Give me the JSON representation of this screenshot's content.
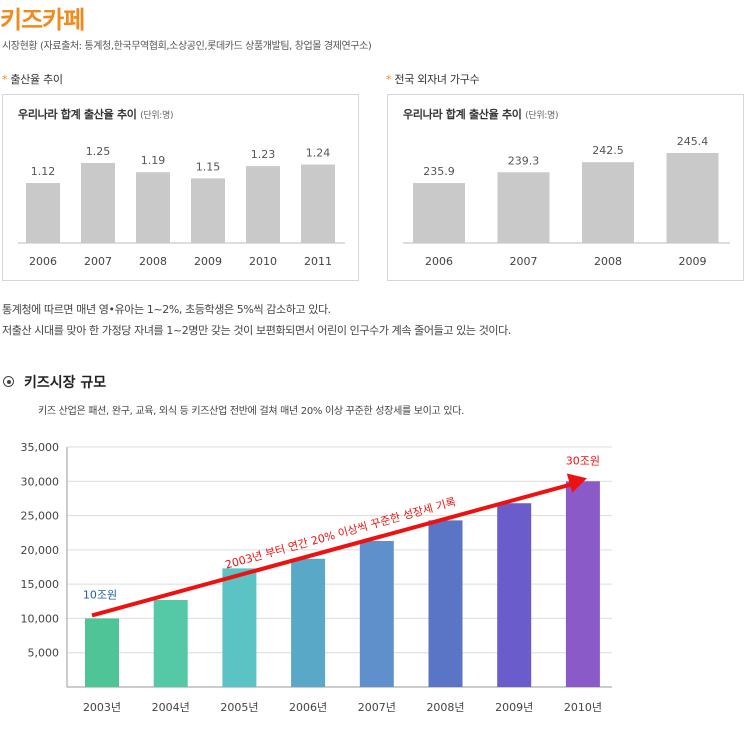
{
  "header": {
    "title": "키즈카페",
    "subtitle": "시장현황 (자료출처: 통계청,한국무역협회,소상공인,롯데카드 상품개발팀, 창업몰 경제연구소)"
  },
  "section_left": {
    "star": "*",
    "label": "출산율 추이"
  },
  "section_right": {
    "star": "*",
    "label": "전국 외자녀 가구수"
  },
  "description": {
    "line1": "통계청에 따르면 매년 영•유아는 1~2%, 초등학생은 5%씩 감소하고 있다.",
    "line2": "저출산 시대를 맞아 한 가정당 자녀를 1~2명만 갖는 것이 보편화되면서 어린이 인구수가 계속 줄어들고 있는 것이다."
  },
  "market": {
    "title": "키즈시장 규모",
    "desc": "키즈 산업은 패션, 완구, 교육, 외식 등 키즈산업 전반에 걸쳐 매년 20% 이상 꾸준한 성장세를 보이고 있다."
  },
  "colors": {
    "accent": "#f08a1c",
    "small_bar": "#c9c9c9",
    "arrow": "#ee1111",
    "start_label": "#1f5fa8"
  },
  "chart_data": [
    {
      "type": "bar",
      "title": "우리나라 합계 출산율 추이",
      "unit": "(단위:명)",
      "categories": [
        "2006",
        "2007",
        "2008",
        "2009",
        "2010",
        "2011"
      ],
      "values": [
        1.12,
        1.25,
        1.19,
        1.15,
        1.23,
        1.24
      ],
      "labels": [
        "1.12",
        "1.25",
        "1.19",
        "1.15",
        "1.23",
        "1.24"
      ]
    },
    {
      "type": "bar",
      "title": "우리나라 합계 출산율 추이",
      "unit": "(단위:명)",
      "categories": [
        "2006",
        "2007",
        "2008",
        "2009"
      ],
      "values": [
        235.9,
        239.3,
        242.5,
        245.4
      ],
      "labels": [
        "235.9",
        "239.3",
        "242.5",
        "245.4"
      ]
    },
    {
      "type": "bar",
      "categories": [
        "2003년",
        "2004년",
        "2005년",
        "2006년",
        "2007년",
        "2008년",
        "2009년",
        "2010년"
      ],
      "values": [
        10000,
        12700,
        17300,
        18700,
        21300,
        24300,
        26800,
        30000
      ],
      "colors": [
        "#4fc597",
        "#55c8a6",
        "#5cc3c4",
        "#5aa8c8",
        "#6090cc",
        "#5a74c6",
        "#6a5ccb",
        "#8a5ac8"
      ],
      "ylim": [
        0,
        35000
      ],
      "yticks": [
        5000,
        10000,
        15000,
        20000,
        25000,
        30000,
        35000
      ],
      "ytick_labels": [
        "5,000",
        "10,000",
        "15,000",
        "20,000",
        "25,000",
        "30,000",
        "35,000"
      ],
      "grid": true,
      "annotations": {
        "start_label": "10조원",
        "end_label": "30조원",
        "arrow_text": "2003년 부터 연간 20% 이상씩 꾸준한 성장세 기록"
      }
    }
  ]
}
